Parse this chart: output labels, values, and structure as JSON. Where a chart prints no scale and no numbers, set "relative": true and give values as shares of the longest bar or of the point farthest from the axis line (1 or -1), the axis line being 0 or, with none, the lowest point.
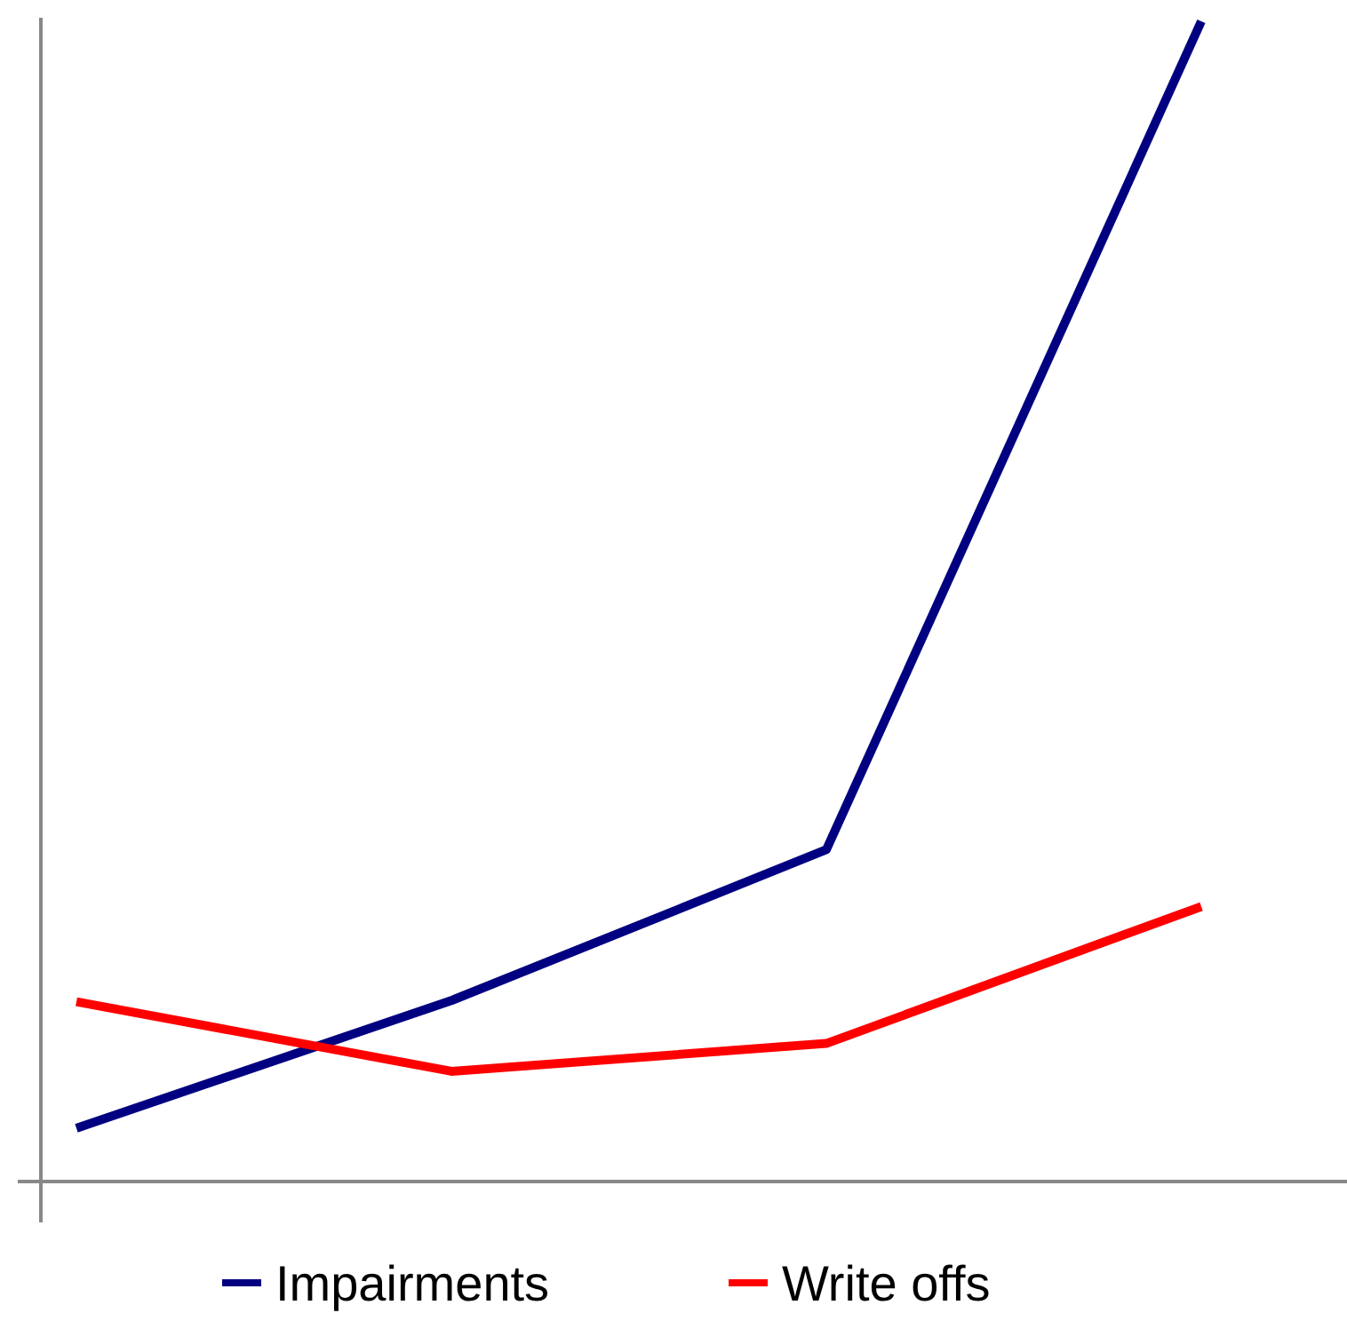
{
  "chart_data": {
    "type": "line",
    "relative": true,
    "categories": [
      null,
      null,
      null,
      null
    ],
    "legend": "bottom",
    "series": [
      {
        "name": "Impairments",
        "color": "#000080",
        "values": [
          0.046,
          0.156,
          0.286,
          1
        ]
      },
      {
        "name": "Write offs",
        "color": "#ff0000",
        "values": [
          0.155,
          0.095,
          0.119,
          0.237
        ]
      }
    ]
  }
}
